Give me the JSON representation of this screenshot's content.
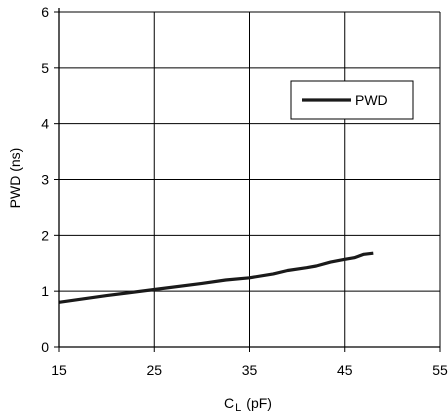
{
  "chart_data": {
    "type": "line",
    "title": "",
    "xlabel_main": "C",
    "xlabel_sub": "L",
    "xlabel_unit": "(pF)",
    "ylabel": "PWD (ns)",
    "xlim": [
      15,
      55
    ],
    "ylim": [
      0,
      6
    ],
    "x_ticks": [
      15,
      25,
      35,
      45,
      55
    ],
    "y_ticks": [
      0,
      1,
      2,
      3,
      4,
      5,
      6
    ],
    "grid": true,
    "legend": {
      "position": "upper-right",
      "entries": [
        "PWD"
      ]
    },
    "series": [
      {
        "name": "PWD",
        "color": "#1a1a1a",
        "x": [
          15,
          20,
          25,
          30,
          32.5,
          35,
          37.5,
          39,
          41,
          42,
          43.5,
          45,
          46,
          47,
          48
        ],
        "y": [
          0.8,
          0.92,
          1.03,
          1.14,
          1.2,
          1.24,
          1.31,
          1.37,
          1.42,
          1.45,
          1.52,
          1.57,
          1.6,
          1.66,
          1.68
        ]
      }
    ]
  }
}
